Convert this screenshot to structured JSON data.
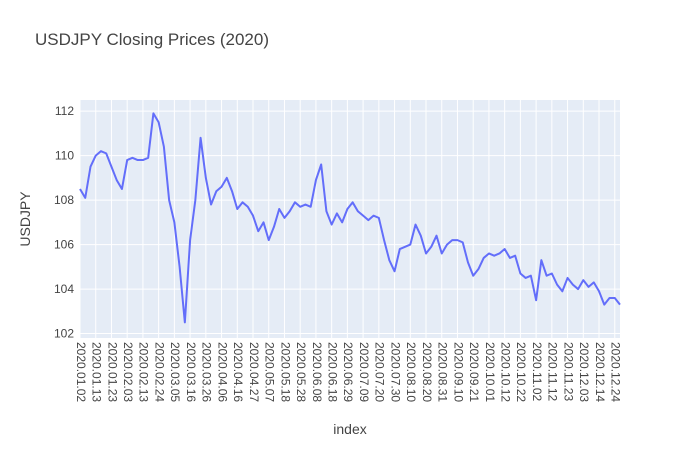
{
  "chart_data": {
    "type": "line",
    "title": "USDJPY Closing Prices (2020)",
    "x_label": "index",
    "y_label": "USDJPY",
    "x": [
      "2020.01.02",
      null,
      null,
      "2020.01.13",
      null,
      null,
      "2020.01.23",
      null,
      null,
      "2020.02.03",
      null,
      null,
      "2020.02.13",
      null,
      null,
      "2020.02.24",
      null,
      null,
      "2020.03.05",
      null,
      null,
      "2020.03.16",
      null,
      null,
      "2020.03.26",
      null,
      null,
      "2020.04.06",
      null,
      null,
      "2020.04.16",
      null,
      null,
      "2020.04.27",
      null,
      null,
      "2020.05.07",
      null,
      null,
      "2020.05.18",
      null,
      null,
      "2020.05.28",
      null,
      null,
      "2020.06.08",
      null,
      null,
      "2020.06.18",
      null,
      null,
      "2020.06.29",
      null,
      null,
      "2020.07.09",
      null,
      null,
      "2020.07.20",
      null,
      null,
      "2020.07.30",
      null,
      null,
      "2020.08.10",
      null,
      null,
      "2020.08.20",
      null,
      null,
      "2020.08.31",
      null,
      null,
      "2020.09.10",
      null,
      null,
      "2020.09.21",
      null,
      null,
      "2020.10.01",
      null,
      null,
      "2020.10.12",
      null,
      null,
      "2020.10.22",
      null,
      null,
      "2020.11.02",
      null,
      null,
      "2020.11.12",
      null,
      null,
      "2020.11.23",
      null,
      null,
      "2020.12.03",
      null,
      null,
      "2020.12.14",
      null,
      null,
      "2020.12.24",
      null
    ],
    "series": [
      {
        "name": "USDJPY",
        "color": "#636efa",
        "values": [
          108.5,
          108.1,
          109.5,
          110.0,
          110.2,
          110.1,
          109.5,
          108.9,
          108.5,
          109.8,
          109.9,
          109.8,
          109.8,
          109.9,
          111.9,
          111.5,
          110.4,
          108.0,
          107.0,
          105.0,
          102.5,
          106.2,
          108.0,
          110.8,
          109.0,
          107.8,
          108.4,
          108.6,
          109.0,
          108.4,
          107.6,
          107.9,
          107.7,
          107.3,
          106.6,
          107.0,
          106.2,
          106.8,
          107.6,
          107.2,
          107.5,
          107.9,
          107.7,
          107.8,
          107.7,
          108.9,
          109.6,
          107.5,
          106.9,
          107.4,
          107.0,
          107.6,
          107.9,
          107.5,
          107.3,
          107.1,
          107.3,
          107.2,
          106.2,
          105.3,
          104.8,
          105.8,
          105.9,
          106.0,
          106.9,
          106.4,
          105.6,
          105.9,
          106.4,
          105.6,
          106.0,
          106.2,
          106.2,
          106.1,
          105.2,
          104.6,
          104.9,
          105.4,
          105.6,
          105.5,
          105.6,
          105.8,
          105.4,
          105.5,
          104.7,
          104.5,
          104.6,
          103.5,
          105.3,
          104.6,
          104.7,
          104.2,
          103.9,
          104.5,
          104.2,
          104.0,
          104.4,
          104.1,
          104.3,
          103.9,
          103.3,
          103.6,
          103.6,
          103.3
        ]
      }
    ],
    "ylim": [
      101.8,
      112.5
    ],
    "yticks": [
      102,
      104,
      106,
      108,
      110,
      112
    ],
    "grid": true
  }
}
